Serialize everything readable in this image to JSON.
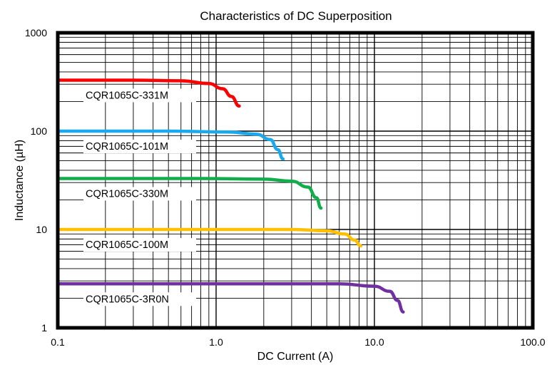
{
  "chart_data": {
    "type": "line",
    "title": "Characteristics of DC Superposition",
    "xlabel": "DC Current (A)",
    "ylabel": "Inductance (µH)",
    "x_scale": "log",
    "y_scale": "log",
    "xlim": [
      0.1,
      100
    ],
    "ylim": [
      1,
      1000
    ],
    "x_ticks": [
      {
        "value": 0.1,
        "label": "0.1"
      },
      {
        "value": 1,
        "label": "1.0"
      },
      {
        "value": 10,
        "label": "10.0"
      },
      {
        "value": 100,
        "label": "100.0"
      }
    ],
    "y_ticks": [
      {
        "value": 1,
        "label": "1"
      },
      {
        "value": 10,
        "label": "10"
      },
      {
        "value": 100,
        "label": "100"
      },
      {
        "value": 1000,
        "label": "1000"
      }
    ],
    "grid": true,
    "series": [
      {
        "name": "CQR1065C-331M",
        "color": "#ff0000",
        "x": [
          0.1,
          0.3,
          0.6,
          0.9,
          1.1,
          1.25,
          1.4
        ],
        "y": [
          330,
          330,
          325,
          305,
          270,
          225,
          180
        ]
      },
      {
        "name": "CQR1065C-101M",
        "color": "#19a9ec",
        "x": [
          0.1,
          0.5,
          1.2,
          1.8,
          2.2,
          2.45,
          2.65
        ],
        "y": [
          100,
          100,
          98,
          93,
          82,
          65,
          52
        ]
      },
      {
        "name": "CQR1065C-330M",
        "color": "#11ad4b",
        "x": [
          0.1,
          0.8,
          2.0,
          3.0,
          3.8,
          4.3,
          4.6
        ],
        "y": [
          33,
          33,
          32.5,
          31,
          27,
          21,
          16.5
        ]
      },
      {
        "name": "CQR1065C-100M",
        "color": "#ffc000",
        "x": [
          0.1,
          1.0,
          3.0,
          5.0,
          6.5,
          7.5,
          8.2
        ],
        "y": [
          10,
          10,
          10,
          9.7,
          9.0,
          7.8,
          6.8
        ]
      },
      {
        "name": "CQR1065C-3R0N",
        "color": "#7030a0",
        "x": [
          0.1,
          2.0,
          6.0,
          10.0,
          12.5,
          14.0,
          15.2
        ],
        "y": [
          2.8,
          2.8,
          2.8,
          2.65,
          2.35,
          1.9,
          1.45
        ]
      }
    ]
  }
}
